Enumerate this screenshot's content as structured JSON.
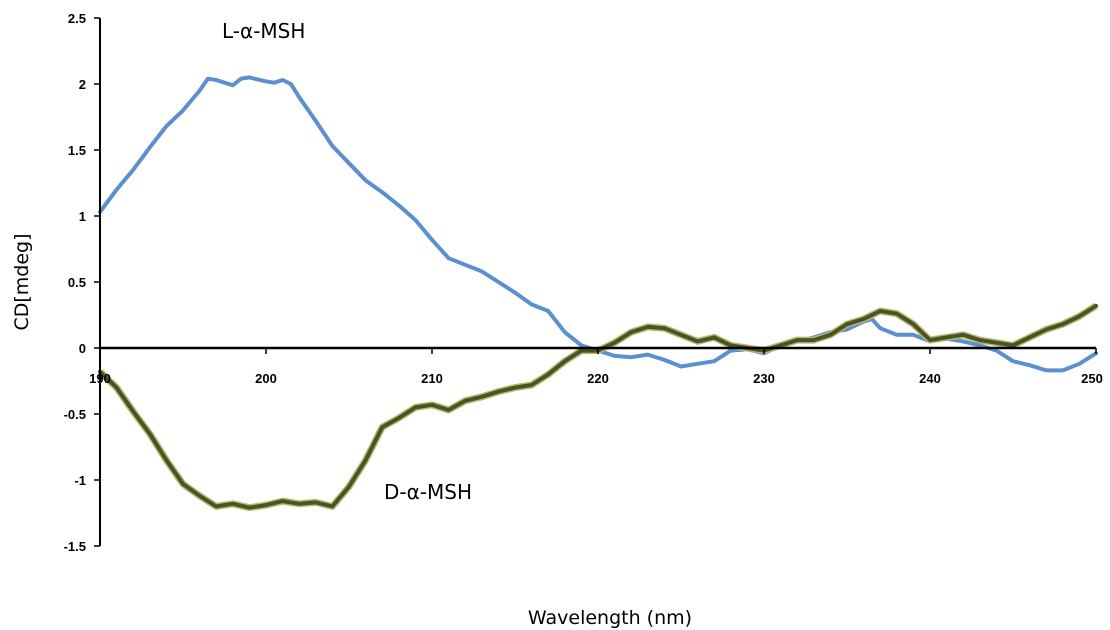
{
  "chart_data": {
    "type": "line",
    "xlabel": "Wavelength (nm)",
    "ylabel": "CD[mdeg]",
    "xlim": [
      190,
      250
    ],
    "ylim": [
      -1.5,
      2.5
    ],
    "x_ticks": [
      "190",
      "200",
      "210",
      "220",
      "230",
      "240",
      "250"
    ],
    "y_ticks": [
      "2.5",
      "2",
      "1.5",
      "1",
      "0.5",
      "0",
      "-0.5",
      "-1",
      "-1.5"
    ],
    "grid": false,
    "legend": "none",
    "series": [
      {
        "name": "L-α-MSH",
        "color": "#5b8fd0",
        "x": [
          190,
          191,
          192,
          193,
          194,
          195,
          196,
          196.5,
          197,
          198,
          198.5,
          199,
          200,
          200.5,
          201,
          201.5,
          202,
          203,
          204,
          205,
          206,
          207,
          208,
          209,
          210,
          211,
          212,
          213,
          214,
          215,
          216,
          217,
          218,
          219,
          220,
          221,
          222,
          223,
          224,
          225,
          226,
          227,
          228,
          229,
          230,
          231,
          232,
          233,
          234,
          235,
          236,
          236.5,
          237,
          238,
          239,
          240,
          241,
          242,
          243,
          244,
          245,
          246,
          247,
          248,
          249,
          250
        ],
        "y": [
          1.03,
          1.2,
          1.35,
          1.52,
          1.68,
          1.8,
          1.95,
          2.04,
          2.03,
          1.99,
          2.04,
          2.05,
          2.02,
          2.01,
          2.03,
          2.0,
          1.9,
          1.72,
          1.53,
          1.4,
          1.27,
          1.18,
          1.08,
          0.97,
          0.82,
          0.68,
          0.63,
          0.58,
          0.5,
          0.42,
          0.33,
          0.28,
          0.12,
          0.02,
          -0.02,
          -0.06,
          -0.07,
          -0.05,
          -0.09,
          -0.14,
          -0.12,
          -0.1,
          -0.02,
          -0.01,
          -0.04,
          0.02,
          0.05,
          0.08,
          0.12,
          0.14,
          0.2,
          0.22,
          0.15,
          0.1,
          0.1,
          0.05,
          0.07,
          0.05,
          0.02,
          -0.02,
          -0.1,
          -0.13,
          -0.17,
          -0.17,
          -0.12,
          -0.04
        ]
      },
      {
        "name": "D-α-MSH",
        "color": "#4a5227",
        "x": [
          190,
          191,
          192,
          193,
          194,
          195,
          196,
          197,
          198,
          199,
          200,
          201,
          202,
          203,
          204,
          205,
          206,
          207,
          208,
          209,
          210,
          211,
          212,
          213,
          214,
          215,
          216,
          217,
          218,
          219,
          220,
          221,
          222,
          223,
          224,
          225,
          226,
          227,
          228,
          229,
          230,
          231,
          232,
          233,
          234,
          235,
          236,
          237,
          238,
          239,
          240,
          241,
          242,
          243,
          244,
          245,
          246,
          247,
          248,
          249,
          250
        ],
        "y": [
          -0.18,
          -0.3,
          -0.48,
          -0.65,
          -0.85,
          -1.03,
          -1.12,
          -1.2,
          -1.18,
          -1.21,
          -1.19,
          -1.16,
          -1.18,
          -1.17,
          -1.2,
          -1.05,
          -0.85,
          -0.6,
          -0.53,
          -0.45,
          -0.43,
          -0.47,
          -0.4,
          -0.37,
          -0.33,
          -0.3,
          -0.28,
          -0.2,
          -0.1,
          -0.02,
          -0.02,
          0.04,
          0.12,
          0.16,
          0.15,
          0.1,
          0.05,
          0.08,
          0.02,
          0.0,
          -0.02,
          0.02,
          0.06,
          0.06,
          0.1,
          0.18,
          0.22,
          0.28,
          0.26,
          0.18,
          0.06,
          0.08,
          0.1,
          0.06,
          0.04,
          0.02,
          0.08,
          0.14,
          0.18,
          0.24,
          0.32
        ]
      }
    ]
  }
}
